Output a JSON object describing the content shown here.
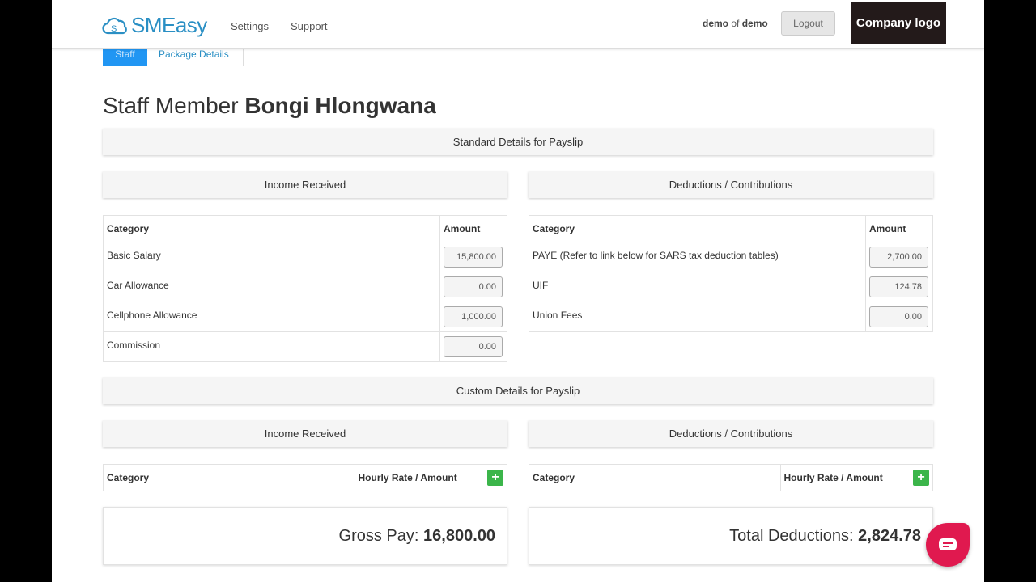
{
  "header": {
    "logo": "SMEasy",
    "nav": [
      "Settings",
      "Support"
    ],
    "user": "demo",
    "of": "of",
    "company": "demo",
    "logout": "Logout",
    "company_logo": "Company logo"
  },
  "tabs": {
    "staff": "Staff",
    "package": "Package Details"
  },
  "title": {
    "prefix": "Staff Member",
    "name": "Bongi Hlongwana"
  },
  "standard": {
    "title": "Standard Details for Payslip",
    "income": {
      "title": "Income Received",
      "col1": "Category",
      "col2": "Amount",
      "rows": [
        {
          "c": "Basic Salary",
          "v": "15,800.00"
        },
        {
          "c": "Car Allowance",
          "v": "0.00"
        },
        {
          "c": "Cellphone Allowance",
          "v": "1,000.00"
        },
        {
          "c": "Commission",
          "v": "0.00"
        }
      ]
    },
    "deductions": {
      "title": "Deductions / Contributions",
      "col1": "Category",
      "col2": "Amount",
      "rows": [
        {
          "c": "PAYE (Refer to link below for SARS tax deduction tables)",
          "v": "2,700.00"
        },
        {
          "c": "UIF",
          "v": "124.78"
        },
        {
          "c": "Union Fees",
          "v": "0.00"
        }
      ]
    }
  },
  "custom": {
    "title": "Custom Details for Payslip",
    "income": {
      "title": "Income Received",
      "col1": "Category",
      "col2": "Hourly Rate / Amount"
    },
    "deductions": {
      "title": "Deductions / Contributions",
      "col1": "Category",
      "col2": "Hourly Rate / Amount"
    }
  },
  "totals": {
    "gross_label": "Gross Pay:",
    "gross": "16,800.00",
    "ded_label": "Total Deductions:",
    "ded": "2,824.78"
  },
  "colors": {
    "accent": "#2196f3",
    "add": "#3bb54a",
    "chat": "#e0194f"
  }
}
